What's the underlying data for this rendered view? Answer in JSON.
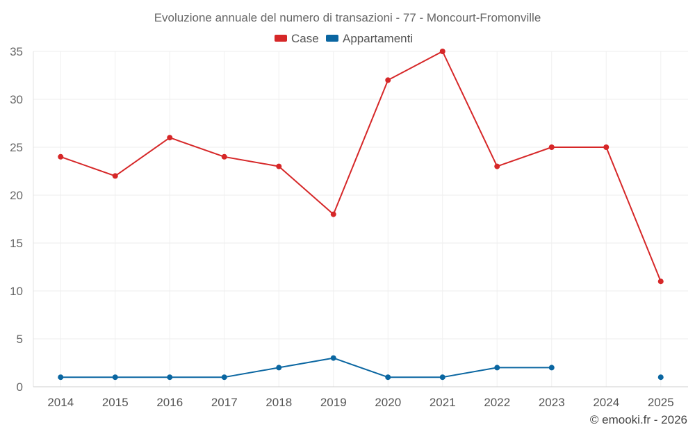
{
  "chart_data": {
    "type": "line",
    "title": "Evoluzione annuale del numero di transazioni - 77 - Moncourt-Fromonville",
    "categories": [
      "2014",
      "2015",
      "2016",
      "2017",
      "2018",
      "2019",
      "2020",
      "2021",
      "2022",
      "2023",
      "2024",
      "2025"
    ],
    "series": [
      {
        "name": "Case",
        "color": "#d62728",
        "values": [
          24,
          22,
          26,
          24,
          23,
          18,
          32,
          35,
          23,
          25,
          25,
          11
        ]
      },
      {
        "name": "Appartamenti",
        "color": "#0a66a1",
        "values": [
          1,
          1,
          1,
          1,
          2,
          3,
          1,
          1,
          2,
          2,
          null,
          1
        ]
      }
    ],
    "yticks": [
      0,
      5,
      10,
      15,
      20,
      25,
      30,
      35
    ],
    "ylim": [
      0,
      35
    ],
    "xlabel": "",
    "ylabel": "",
    "grid": true,
    "legend_position": "top-center"
  },
  "credit": "© emooki.fr - 2026"
}
